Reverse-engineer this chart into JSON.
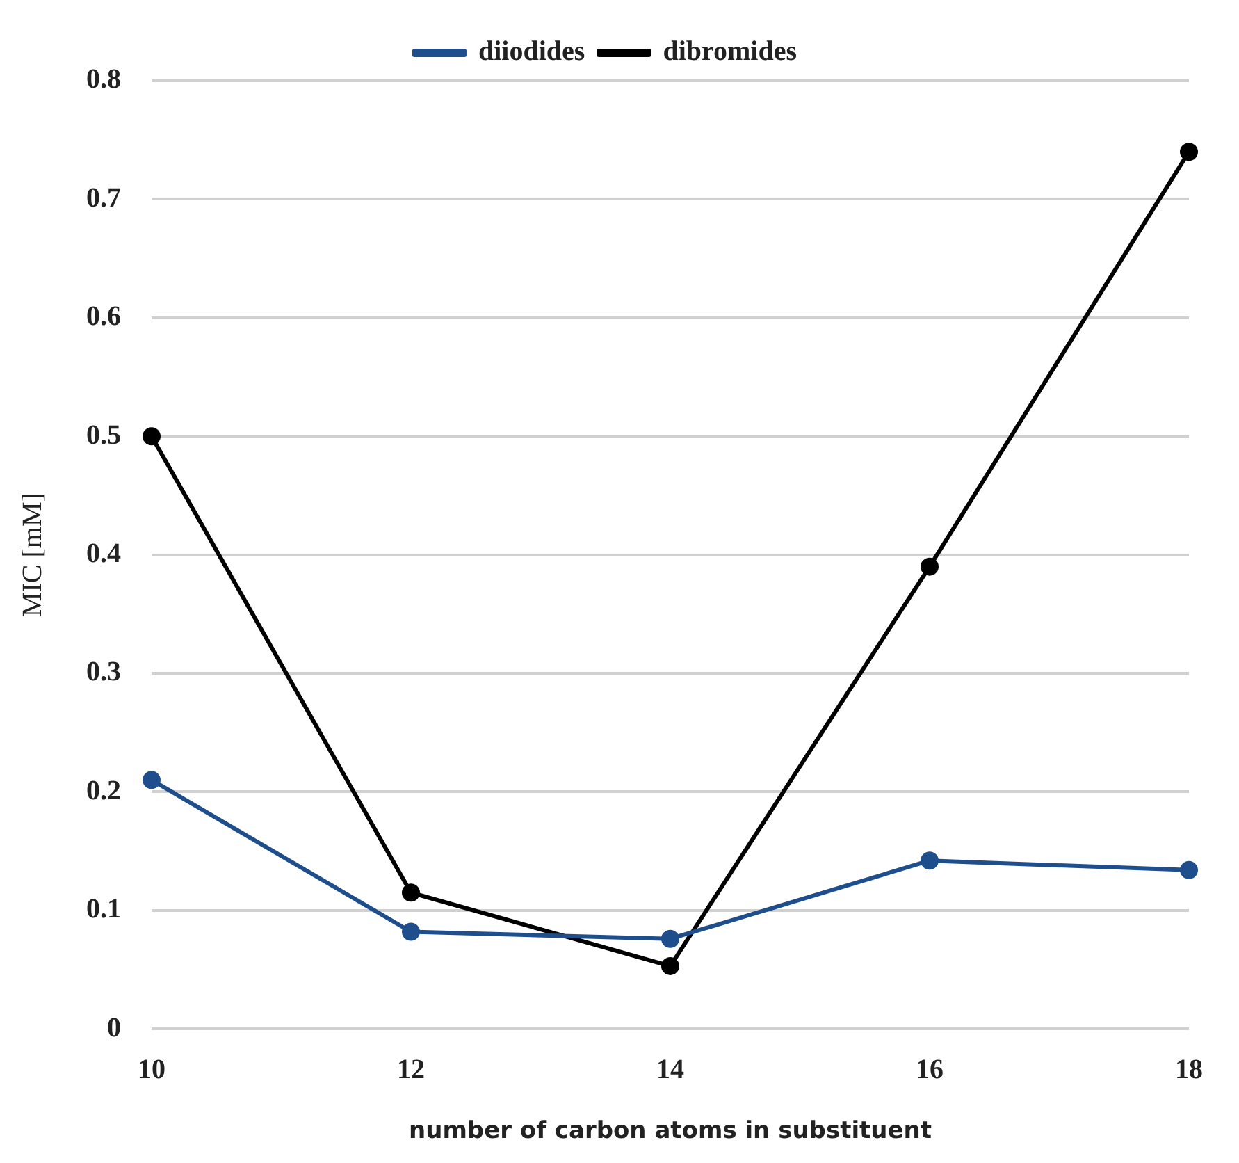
{
  "chart_data": {
    "type": "line",
    "xlabel": "number of carbon atoms in substituent",
    "ylabel": "MIC [mM]",
    "categories": [
      "10",
      "12",
      "14",
      "16",
      "18"
    ],
    "series": [
      {
        "name": "diiodides",
        "color": "#1f4e8c",
        "values": [
          0.21,
          0.082,
          0.076,
          0.142,
          0.134
        ]
      },
      {
        "name": "dibromides",
        "color": "#000000",
        "values": [
          0.5,
          0.115,
          0.053,
          0.39,
          0.74
        ]
      }
    ],
    "ylim": [
      0,
      0.8
    ],
    "yticks": [
      0,
      0.1,
      0.2,
      0.3,
      0.4,
      0.5,
      0.6,
      0.7,
      0.8
    ],
    "grid": "y",
    "legend": "top",
    "marker": "circle",
    "line_style": "solid"
  }
}
